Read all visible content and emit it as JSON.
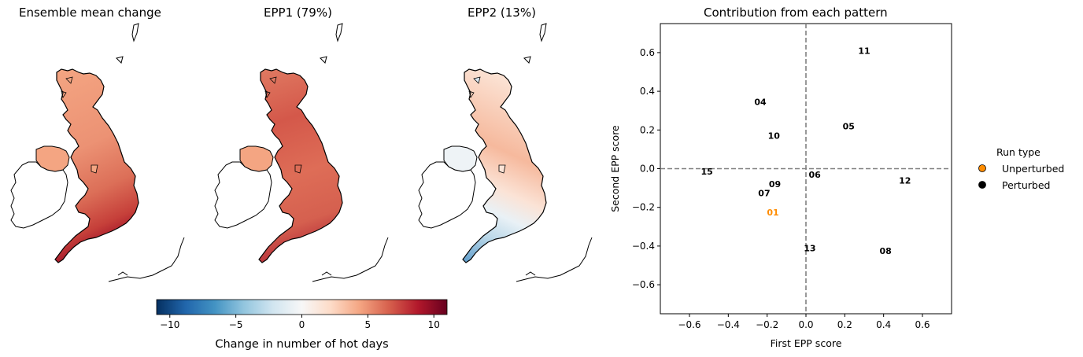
{
  "maps": [
    {
      "title": "Ensemble mean change"
    },
    {
      "title": "EPP1 (79%)"
    },
    {
      "title": "EPP2 (13%)"
    }
  ],
  "colorbar": {
    "label": "Change in number of hot days",
    "ticks": [
      "−10",
      "−5",
      "0",
      "5",
      "10"
    ],
    "tick_values": [
      -10,
      -5,
      0,
      5,
      10
    ],
    "range": [
      -11,
      11
    ],
    "colormap": "RdBu_r"
  },
  "chart_data": {
    "type": "scatter",
    "title": "Contribution from each pattern",
    "xlabel": "First EPP score",
    "ylabel": "Second EPP score",
    "xlim": [
      -0.75,
      0.75
    ],
    "ylim": [
      -0.75,
      0.75
    ],
    "xticks": [
      -0.6,
      -0.4,
      -0.2,
      0.0,
      0.2,
      0.4,
      0.6
    ],
    "yticks": [
      -0.6,
      -0.4,
      -0.2,
      0.0,
      0.2,
      0.4,
      0.6
    ],
    "xtick_labels": [
      "−0.6",
      "−0.4",
      "−0.2",
      "0.0",
      "0.2",
      "0.4",
      "0.6"
    ],
    "ytick_labels": [
      "−0.6",
      "−0.4",
      "−0.2",
      "0.0",
      "0.2",
      "0.4",
      "0.6"
    ],
    "grid": false,
    "reference_lines": {
      "x": 0.0,
      "y": 0.0,
      "style": "dashed",
      "color": "#808080"
    },
    "points": [
      {
        "label": "01",
        "x": -0.17,
        "y": -0.225,
        "run_type": "Unperturbed"
      },
      {
        "label": "04",
        "x": -0.235,
        "y": 0.345,
        "run_type": "Perturbed"
      },
      {
        "label": "05",
        "x": 0.22,
        "y": 0.22,
        "run_type": "Perturbed"
      },
      {
        "label": "06",
        "x": 0.045,
        "y": -0.03,
        "run_type": "Perturbed"
      },
      {
        "label": "07",
        "x": -0.215,
        "y": -0.125,
        "run_type": "Perturbed"
      },
      {
        "label": "08",
        "x": 0.41,
        "y": -0.425,
        "run_type": "Perturbed"
      },
      {
        "label": "09",
        "x": -0.16,
        "y": -0.08,
        "run_type": "Perturbed"
      },
      {
        "label": "10",
        "x": -0.165,
        "y": 0.17,
        "run_type": "Perturbed"
      },
      {
        "label": "11",
        "x": 0.3,
        "y": 0.61,
        "run_type": "Perturbed"
      },
      {
        "label": "12",
        "x": 0.51,
        "y": -0.06,
        "run_type": "Perturbed"
      },
      {
        "label": "13",
        "x": 0.02,
        "y": -0.41,
        "run_type": "Perturbed"
      },
      {
        "label": "15",
        "x": -0.51,
        "y": -0.015,
        "run_type": "Perturbed"
      }
    ],
    "legend": {
      "title": "Run type",
      "placement": "right, outside",
      "entries": [
        {
          "name": "Unperturbed",
          "color": "#ff8c00"
        },
        {
          "name": "Perturbed",
          "color": "#000000"
        }
      ]
    }
  }
}
